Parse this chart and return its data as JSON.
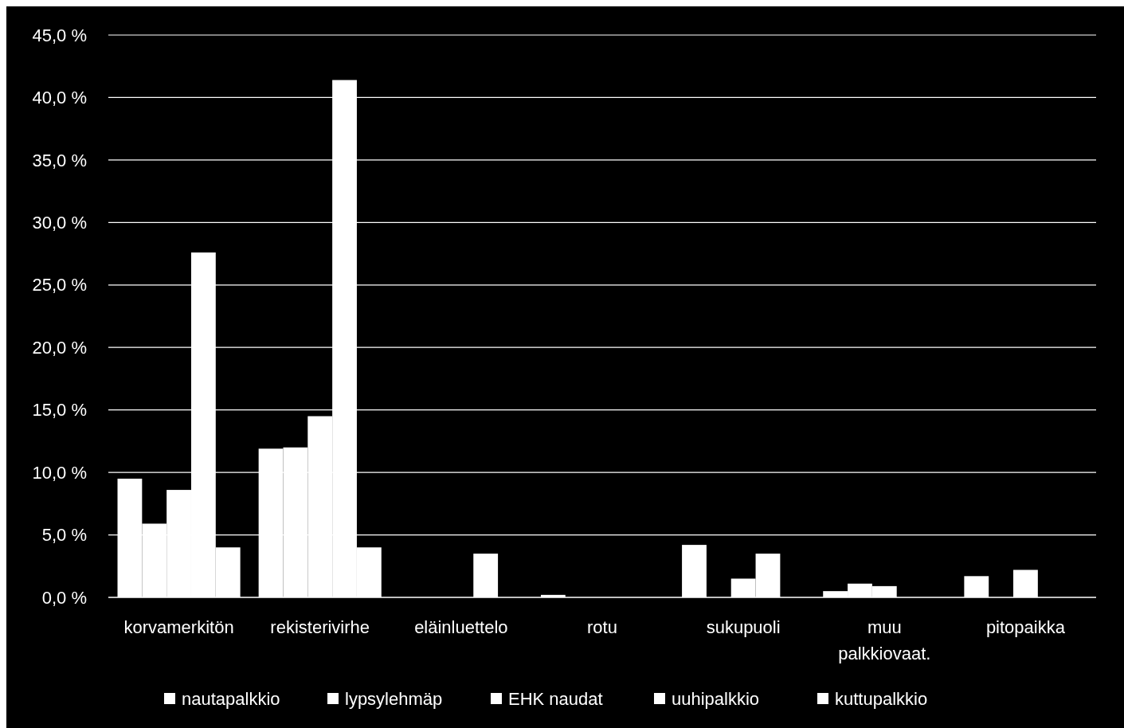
{
  "chart_data": {
    "type": "bar",
    "categories": [
      "korvamerkitön",
      "rekisterivirhe",
      "eläinluettelo",
      "rotu",
      "sukupuoli",
      "muu palkkiovaat.",
      "pitopaikka"
    ],
    "series": [
      {
        "name": "nautapalkkio",
        "color": "#ffffff",
        "values": [
          9.5,
          11.9,
          0,
          0.2,
          4.2,
          0.5,
          1.7
        ]
      },
      {
        "name": "lypsylehmäp",
        "color": "#ffffff",
        "values": [
          5.9,
          12.0,
          0,
          0,
          0,
          1.1,
          0
        ]
      },
      {
        "name": "EHK naudat",
        "color": "#ffffff",
        "values": [
          8.6,
          14.5,
          0,
          0,
          1.5,
          0.9,
          2.2
        ]
      },
      {
        "name": "uuhipalkkio",
        "color": "#ffffff",
        "values": [
          27.6,
          41.4,
          3.5,
          0,
          3.5,
          0,
          0
        ]
      },
      {
        "name": "kuttupalkkio",
        "color": "#ffffff",
        "values": [
          4.0,
          4.0,
          0,
          0,
          0,
          0,
          0
        ]
      }
    ],
    "ylim": [
      0,
      45
    ],
    "yticks": [
      {
        "value": 0,
        "label": "0,0 %"
      },
      {
        "value": 5,
        "label": "5,0 %"
      },
      {
        "value": 10,
        "label": "10,0 %"
      },
      {
        "value": 15,
        "label": "15,0 %"
      },
      {
        "value": 20,
        "label": "20,0 %"
      },
      {
        "value": 25,
        "label": "25,0 %"
      },
      {
        "value": 30,
        "label": "30,0 %"
      },
      {
        "value": 35,
        "label": "35,0 %"
      },
      {
        "value": 40,
        "label": "40,0 %"
      },
      {
        "value": 45,
        "label": "45,0 %"
      }
    ],
    "grid": "y",
    "legend": "bottom"
  }
}
